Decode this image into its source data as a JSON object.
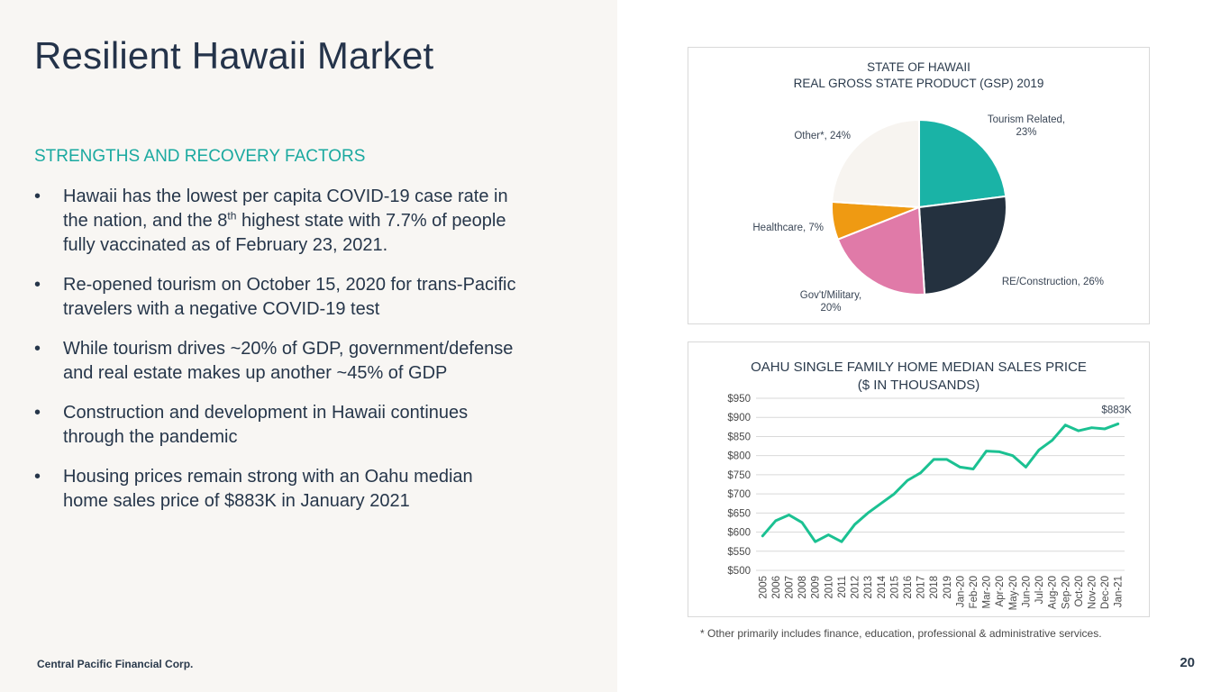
{
  "slide": {
    "title": "Resilient Hawaii Market",
    "section_heading": "STRENGTHS AND RECOVERY FACTORS",
    "bullet_symbol": "•",
    "bullets": [
      {
        "text_before": "Hawaii has the lowest per capita COVID-19 case rate in the nation, and the 8",
        "sup": "th",
        "text_after": " highest state with 7.7% of people fully vaccinated as of February 23, 2021."
      },
      {
        "text": "Re-opened tourism on October 15, 2020  for trans-Pacific travelers with a negative COVID-19 test"
      },
      {
        "text": "While tourism drives ~20% of GDP, government/defense and real estate makes up another ~45% of GDP"
      },
      {
        "text": "Construction and development in Hawaii continues through the pandemic"
      },
      {
        "text": "Housing prices remain strong with an Oahu median home sales price of $883K in January 2021"
      }
    ],
    "footer_company": "Central Pacific Financial Corp.",
    "page_number": "20",
    "footnote": "* Other primarily includes finance, education, professional & administrative services."
  },
  "chart_data": [
    {
      "type": "pie",
      "title_line1": "STATE OF HAWAII",
      "title_line2": "REAL GROSS STATE PRODUCT (GSP) 2019",
      "slices": [
        {
          "label_lines": [
            "Tourism Related,",
            "23%"
          ],
          "value": 23,
          "color": "#1ab3a6"
        },
        {
          "label_lines": [
            "RE/Construction, 26%"
          ],
          "value": 26,
          "color": "#24313f"
        },
        {
          "label_lines": [
            "Gov't/Military,",
            "20%"
          ],
          "value": 20,
          "color": "#e07aa8"
        },
        {
          "label_lines": [
            "Healthcare, 7%"
          ],
          "value": 7,
          "color": "#ef9a12"
        },
        {
          "label_lines": [
            "Other*, 24%"
          ],
          "value": 24,
          "color": "#f7f4f0"
        }
      ],
      "start_angle_deg": 0,
      "direction": "clockwise"
    },
    {
      "type": "line",
      "title_line1": "OAHU SINGLE FAMILY HOME MEDIAN SALES PRICE",
      "title_line2": "($ IN THOUSANDS)",
      "categories": [
        "2005",
        "2006",
        "2007",
        "2008",
        "2009",
        "2010",
        "2011",
        "2012",
        "2013",
        "2014",
        "2015",
        "2016",
        "2017",
        "2018",
        "2019",
        "Jan-20",
        "Feb-20",
        "Mar-20",
        "Apr-20",
        "May-20",
        "Jun-20",
        "Jul-20",
        "Aug-20",
        "Sep-20",
        "Oct-20",
        "Nov-20",
        "Dec-20",
        "Jan-21"
      ],
      "series": [
        {
          "values": [
            590,
            630,
            645,
            625,
            575,
            593,
            575,
            620,
            650,
            675,
            700,
            735,
            755,
            790,
            790,
            770,
            765,
            812,
            810,
            800,
            770,
            815,
            840,
            880,
            865,
            873,
            870,
            883
          ],
          "color": "#1bc192"
        }
      ],
      "yticks": [
        500,
        550,
        600,
        650,
        700,
        750,
        800,
        850,
        900,
        950
      ],
      "ytick_labels": [
        "$500",
        "$550",
        "$600",
        "$650",
        "$700",
        "$750",
        "$800",
        "$850",
        "$900",
        "$950"
      ],
      "ylim": [
        500,
        950
      ],
      "grid": true,
      "annotation": "$883K"
    }
  ]
}
